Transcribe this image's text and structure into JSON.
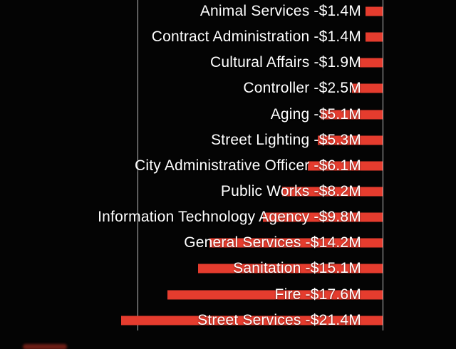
{
  "chart_data": {
    "type": "bar",
    "orientation": "horizontal",
    "title": "",
    "xlabel": "",
    "ylabel": "",
    "unit": "$M",
    "categories": [
      "Animal Services",
      "Contract Administration",
      "Cultural Affairs",
      "Controller",
      "Aging",
      "Street Lighting",
      "City Administrative Officer",
      "Public Works",
      "Information Technology Agency",
      "General Services",
      "Sanitation",
      "Fire",
      "Street Services"
    ],
    "values": [
      -1.4,
      -1.4,
      -1.9,
      -2.5,
      -5.1,
      -5.3,
      -6.1,
      -8.2,
      -9.8,
      -14.2,
      -15.1,
      -17.6,
      -21.4
    ],
    "labels": [
      "Animal Services -$1.4M",
      "Contract Administration -$1.4M",
      "Cultural Affairs -$1.9M",
      "Controller -$2.5M",
      "Aging -$5.1M",
      "Street Lighting -$5.3M",
      "City Administrative Officer -$6.1M",
      "Public Works -$8.2M",
      "Information Technology Agency -$9.8M",
      "General Services -$14.2M",
      "Sanitation -$15.1M",
      "Fire -$17.6M",
      "Street Services -$21.4M"
    ],
    "axis": {
      "zero_line": "right",
      "left_gridline_value": -20,
      "xlim": [
        -20,
        0
      ]
    },
    "legend": "none",
    "colors": {
      "bar": "#e53c2e",
      "text": "#ffffff",
      "background": "#040404",
      "gridline": "#bdbdbd"
    }
  }
}
